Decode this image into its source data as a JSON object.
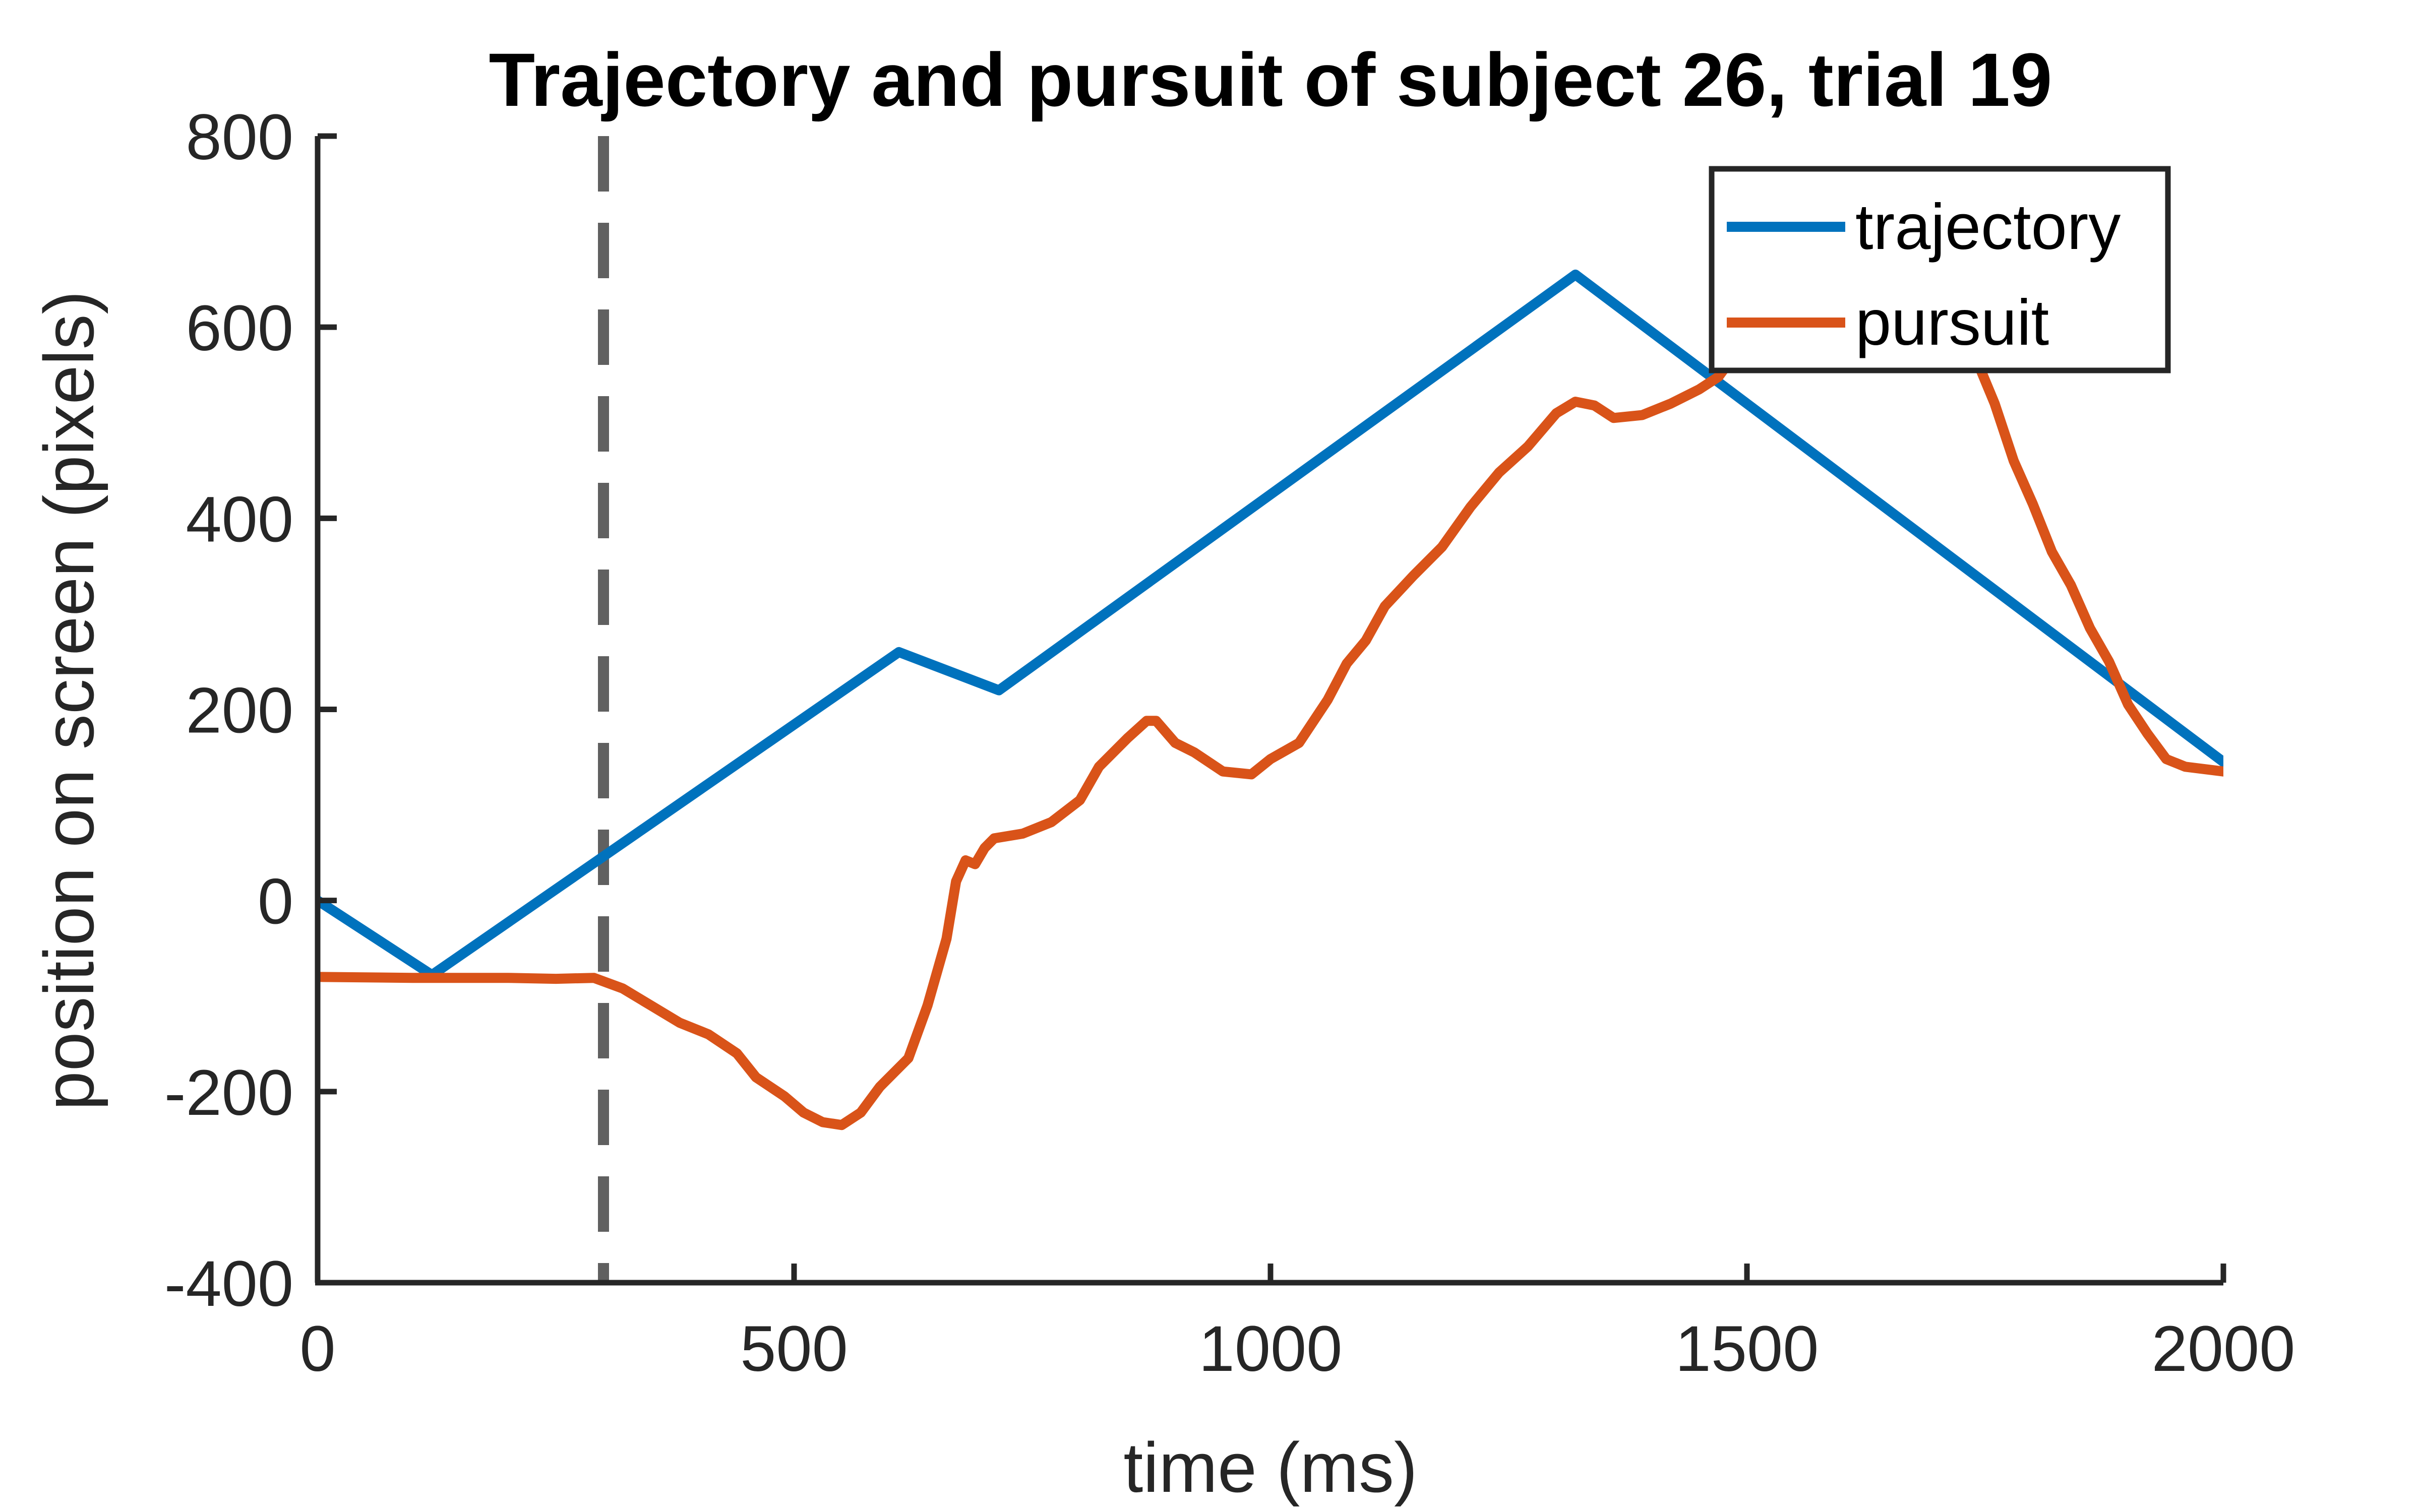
{
  "chart_data": {
    "type": "line",
    "title": "Trajectory and pursuit of subject 26, trial 19",
    "xlabel": "time (ms)",
    "ylabel": "position on screen (pixels)",
    "xlim": [
      0,
      2000
    ],
    "ylim": [
      -400,
      800
    ],
    "xticks": [
      0,
      500,
      1000,
      1500,
      2000
    ],
    "yticks": [
      -400,
      -200,
      0,
      200,
      400,
      600,
      800
    ],
    "grid": false,
    "legend_position": "top-right",
    "vertical_line": {
      "x": 300,
      "style": "dashed",
      "color": "#606060"
    },
    "series": [
      {
        "name": "trajectory",
        "color": "#0072BD",
        "points": [
          [
            0,
            0
          ],
          [
            120,
            -78
          ],
          [
            610,
            260
          ],
          [
            715,
            220
          ],
          [
            1320,
            655
          ],
          [
            2000,
            145
          ]
        ]
      },
      {
        "name": "pursuit",
        "color": "#D95319",
        "points": [
          [
            0,
            -80
          ],
          [
            100,
            -81
          ],
          [
            200,
            -81
          ],
          [
            250,
            -82
          ],
          [
            290,
            -81
          ],
          [
            320,
            -92
          ],
          [
            350,
            -110
          ],
          [
            380,
            -128
          ],
          [
            410,
            -140
          ],
          [
            440,
            -160
          ],
          [
            460,
            -185
          ],
          [
            490,
            -205
          ],
          [
            510,
            -222
          ],
          [
            530,
            -232
          ],
          [
            550,
            -235
          ],
          [
            570,
            -222
          ],
          [
            590,
            -195
          ],
          [
            620,
            -165
          ],
          [
            640,
            -110
          ],
          [
            660,
            -40
          ],
          [
            670,
            20
          ],
          [
            680,
            42
          ],
          [
            690,
            38
          ],
          [
            700,
            55
          ],
          [
            710,
            65
          ],
          [
            740,
            70
          ],
          [
            770,
            82
          ],
          [
            800,
            105
          ],
          [
            820,
            140
          ],
          [
            850,
            170
          ],
          [
            870,
            188
          ],
          [
            880,
            188
          ],
          [
            900,
            165
          ],
          [
            920,
            155
          ],
          [
            950,
            135
          ],
          [
            980,
            132
          ],
          [
            1000,
            148
          ],
          [
            1030,
            165
          ],
          [
            1060,
            210
          ],
          [
            1080,
            248
          ],
          [
            1100,
            272
          ],
          [
            1120,
            308
          ],
          [
            1150,
            340
          ],
          [
            1180,
            370
          ],
          [
            1210,
            412
          ],
          [
            1240,
            448
          ],
          [
            1270,
            475
          ],
          [
            1300,
            510
          ],
          [
            1320,
            522
          ],
          [
            1340,
            518
          ],
          [
            1360,
            505
          ],
          [
            1390,
            508
          ],
          [
            1420,
            520
          ],
          [
            1450,
            535
          ],
          [
            1470,
            548
          ],
          [
            1490,
            575
          ],
          [
            1530,
            600
          ],
          [
            1570,
            622
          ],
          [
            1620,
            648
          ],
          [
            1650,
            650
          ],
          [
            1680,
            642
          ],
          [
            1710,
            612
          ],
          [
            1740,
            568
          ],
          [
            1760,
            520
          ],
          [
            1780,
            460
          ],
          [
            1800,
            415
          ],
          [
            1820,
            365
          ],
          [
            1840,
            330
          ],
          [
            1860,
            285
          ],
          [
            1880,
            250
          ],
          [
            1900,
            205
          ],
          [
            1920,
            175
          ],
          [
            1940,
            148
          ],
          [
            1960,
            140
          ],
          [
            2000,
            135
          ]
        ]
      }
    ]
  }
}
